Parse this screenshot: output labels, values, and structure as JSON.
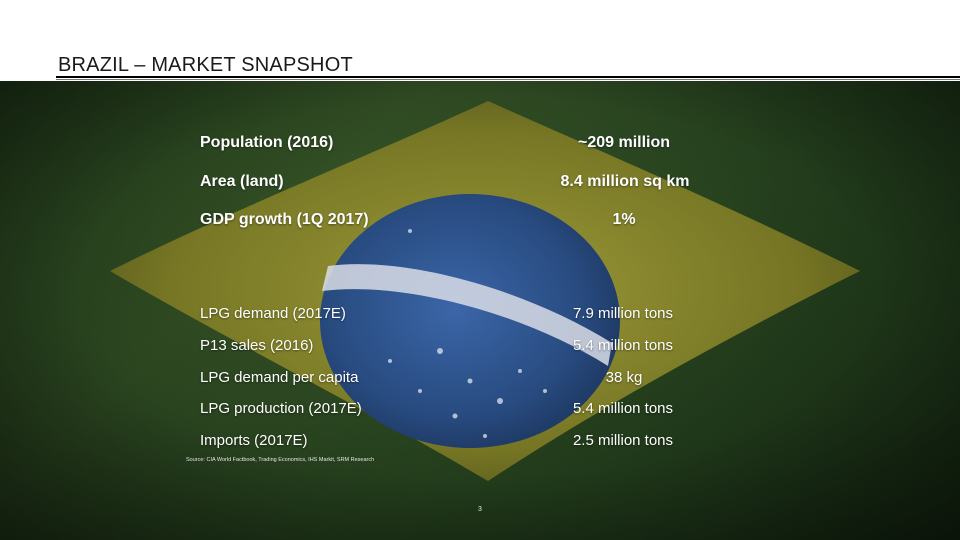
{
  "slide": {
    "title": "BRAZIL – MARKET SNAPSHOT",
    "source": "Source: CIA World Factbook, Trading Economics, IHS Markit, SRM Research",
    "page_number": "3"
  },
  "stats_top": [
    {
      "label": "Population (2016)",
      "value": "~209 million"
    },
    {
      "label": "Area (land)",
      "value": "8.4 million sq km"
    },
    {
      "label": "GDP growth (1Q 2017)",
      "value": "1%"
    }
  ],
  "stats_bottom": [
    {
      "label": "LPG demand (2017E)",
      "value": "7.9 million tons"
    },
    {
      "label": "P13 sales (2016)",
      "value": "5.4 million tons"
    },
    {
      "label": "LPG demand per capita",
      "value": "38 kg"
    },
    {
      "label": "LPG production (2017E)",
      "value": "5.4 million tons"
    },
    {
      "label": "Imports (2017E)",
      "value": "2.5 million tons"
    }
  ],
  "colors": {
    "flag_green": "#2f4d24",
    "flag_yellow": "#8c8a2a",
    "flag_blue": "#2c4f86",
    "text": "#ffffff"
  }
}
